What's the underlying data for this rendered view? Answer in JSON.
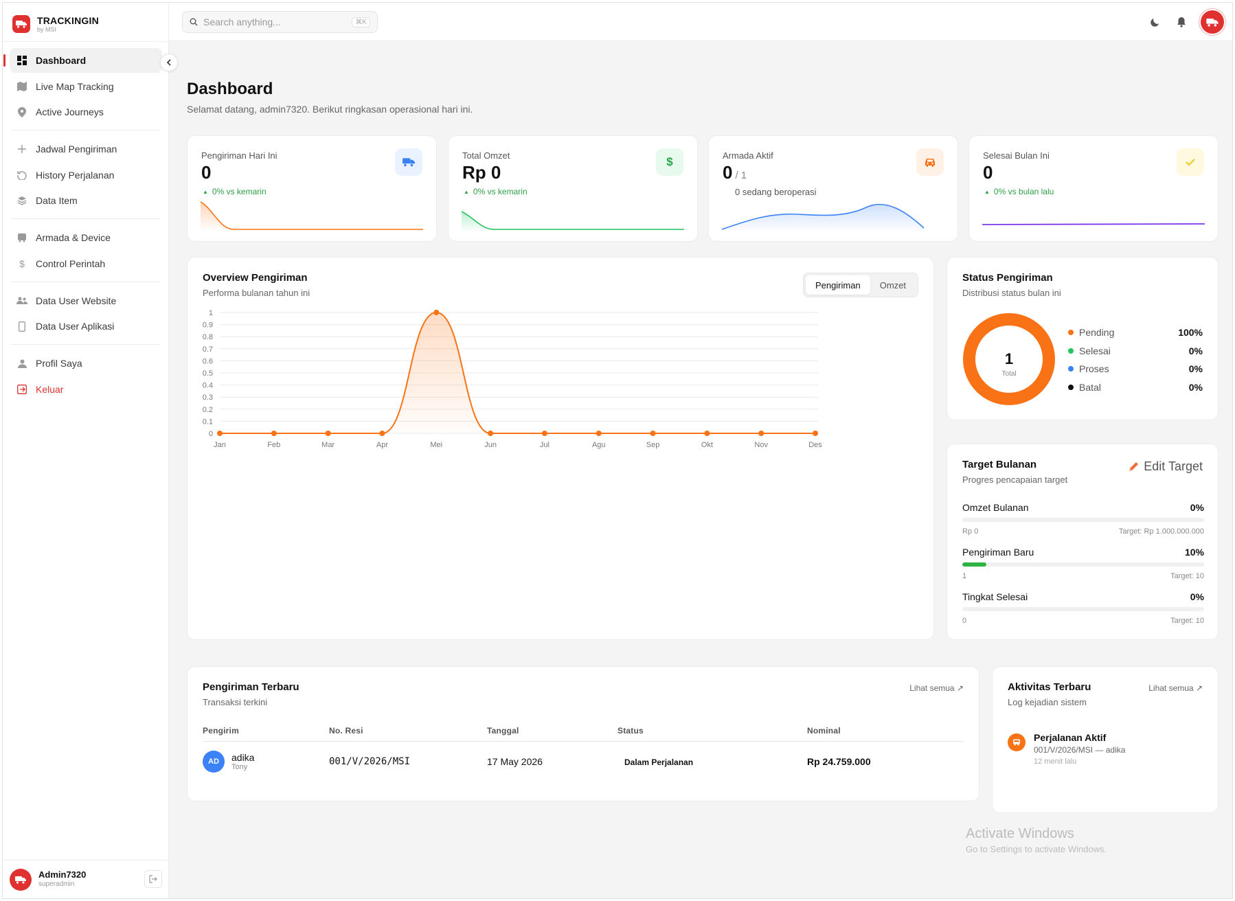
{
  "brand": {
    "title": "TRACKINGIN",
    "sub": "by MSI",
    "color": "#e03131"
  },
  "nav": {
    "dashboard": "Dashboard",
    "live_map": "Live Map Tracking",
    "active_journeys": "Active Journeys",
    "jadwal": "Jadwal Pengiriman",
    "history": "History Perjalanan",
    "data_item": "Data Item",
    "armada": "Armada & Device",
    "control": "Control Perintah",
    "user_web": "Data User Website",
    "user_app": "Data User Aplikasi",
    "profil": "Profil Saya",
    "keluar": "Keluar"
  },
  "user": {
    "name": "Admin7320",
    "role": "superadmin"
  },
  "search": {
    "placeholder": "Search anything...",
    "shortcut": "⌘K"
  },
  "page": {
    "title": "Dashboard",
    "subtitle": "Selamat datang, admin7320. Berikut ringkasan operasional hari ini."
  },
  "stats": [
    {
      "label": "Pengiriman Hari Ini",
      "value": "0",
      "trend": "0% vs kemarin",
      "icon": "truck-icon",
      "color": "#f97316"
    },
    {
      "label": "Total Omzet",
      "value": "Rp 0",
      "trend": "0% vs kemarin",
      "icon": "dollar-icon",
      "color": "#22c55e"
    },
    {
      "label": "Armada Aktif",
      "value": "0",
      "denom": "/ 1",
      "note": "0 sedang beroperasi",
      "icon": "car-icon",
      "color": "#3b82f6"
    },
    {
      "label": "Selesai Bulan Ini",
      "value": "0",
      "trend": "0% vs bulan lalu",
      "icon": "check-icon",
      "color": "#7c3aed"
    }
  ],
  "overview": {
    "title": "Overview Pengiriman",
    "subtitle": "Performa bulanan tahun ini",
    "tabs": [
      "Pengiriman",
      "Omzet"
    ],
    "active_tab": "Pengiriman"
  },
  "chart_data": {
    "type": "area",
    "categories": [
      "Jan",
      "Feb",
      "Mar",
      "Apr",
      "Mei",
      "Jun",
      "Jul",
      "Agu",
      "Sep",
      "Okt",
      "Nov",
      "Des"
    ],
    "values": [
      0,
      0,
      0,
      0,
      1,
      0,
      0,
      0,
      0,
      0,
      0,
      0
    ],
    "yticks": [
      "0",
      "0.1",
      "0.2",
      "0.3",
      "0.4",
      "0.5",
      "0.6",
      "0.7",
      "0.8",
      "0.9",
      "1"
    ],
    "ylim": [
      0,
      1
    ],
    "color": "#f97316",
    "grid": true
  },
  "status": {
    "title": "Status Pengiriman",
    "subtitle": "Distribusi status bulan ini",
    "total": "1",
    "total_label": "Total",
    "items": [
      {
        "label": "Pending",
        "pct": "100%",
        "color": "#f97316"
      },
      {
        "label": "Selesai",
        "pct": "0%",
        "color": "#22c55e"
      },
      {
        "label": "Proses",
        "pct": "0%",
        "color": "#3b82f6"
      },
      {
        "label": "Batal",
        "pct": "0%",
        "color": "#111111"
      }
    ]
  },
  "target": {
    "title": "Target Bulanan",
    "subtitle": "Progres pencapaian target",
    "edit_label": "Edit Target",
    "items": [
      {
        "label": "Omzet Bulanan",
        "pct": "0%",
        "fraction": 0,
        "current": "Rp 0",
        "target": "Target: Rp 1.000.000.000"
      },
      {
        "label": "Pengiriman Baru",
        "pct": "10%",
        "fraction": 0.1,
        "current": "1",
        "target": "Target: 10"
      },
      {
        "label": "Tingkat Selesai",
        "pct": "0%",
        "fraction": 0,
        "current": "0",
        "target": "Target: 10"
      }
    ]
  },
  "recent": {
    "title": "Pengiriman Terbaru",
    "subtitle": "Transaksi terkini",
    "see_all": "Lihat semua ↗",
    "columns": [
      "Pengirim",
      "No. Resi",
      "Tanggal",
      "Status",
      "Nominal"
    ],
    "rows": [
      {
        "initials": "AD",
        "sender": "adika",
        "sender_sub": "Tony",
        "resi": "001/V/2026/MSI",
        "date": "17 May 2026",
        "status": "Dalam Perjalanan",
        "nominal": "Rp 24.759.000"
      }
    ]
  },
  "activity": {
    "title": "Aktivitas Terbaru",
    "subtitle": "Log kejadian sistem",
    "see_all": "Lihat semua ↗",
    "items": [
      {
        "title": "Perjalanan Aktif",
        "desc": "001/V/2026/MSI — adika",
        "time": "12 menit lalu"
      }
    ]
  },
  "watermark": {
    "line1": "Activate Windows",
    "line2": "Go to Settings to activate Windows."
  }
}
